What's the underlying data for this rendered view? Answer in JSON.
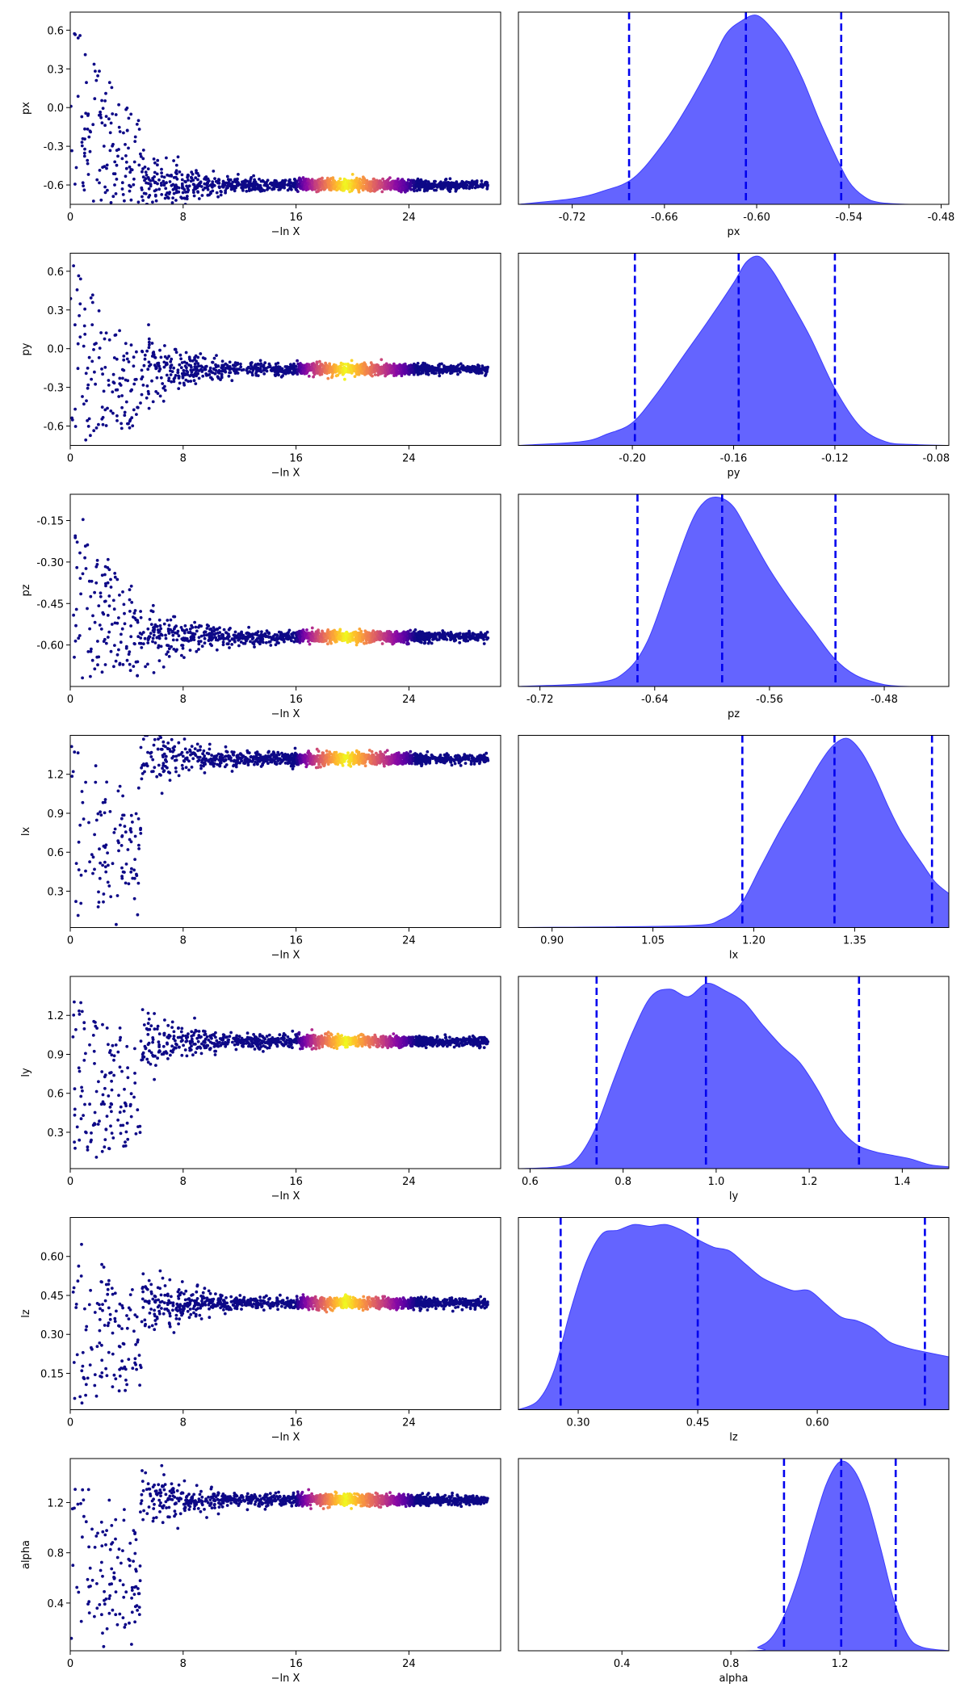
{
  "figure": {
    "title": "",
    "trace_xlabel": "−ln X",
    "trace_xticks": [
      0,
      8,
      16,
      24
    ],
    "trace_xlim": [
      0,
      30.5
    ],
    "colormap": "plasma",
    "colors": {
      "posterior_fill": "#6464ff",
      "posterior_edge": "#3c3cff",
      "quantile_line": "#0000ee",
      "axis": "#000000",
      "background": "#ffffff"
    }
  },
  "chart_data": [
    {
      "type": "scatter",
      "name": "px",
      "ylabel": "px",
      "ylim": [
        -0.75,
        0.74
      ],
      "yticks": [
        "0.6",
        "0.3",
        "0.0",
        "-0.3",
        "-0.6"
      ],
      "ytick_values": [
        0.6,
        0.3,
        0.0,
        -0.3,
        -0.6
      ],
      "xlabel": "−ln X",
      "xticks": [
        "0",
        "8",
        "16",
        "24"
      ],
      "converges_to": -0.6,
      "initial_spread": [
        -0.75,
        0.74
      ],
      "band": [
        16,
        24
      ]
    },
    {
      "type": "area",
      "name": "px",
      "xlabel": "px",
      "xlim": [
        -0.755,
        -0.475
      ],
      "xticks": [
        "-0.72",
        "-0.66",
        "-0.60",
        "-0.54",
        "-0.48"
      ],
      "xtick_values": [
        -0.72,
        -0.66,
        -0.6,
        -0.54,
        -0.48
      ],
      "quantiles": [
        -0.683,
        -0.607,
        -0.545
      ],
      "x": [
        -0.755,
        -0.72,
        -0.7,
        -0.68,
        -0.66,
        -0.645,
        -0.63,
        -0.62,
        -0.61,
        -0.6,
        -0.59,
        -0.58,
        -0.57,
        -0.56,
        -0.55,
        -0.54,
        -0.53,
        -0.52,
        -0.5,
        -0.475
      ],
      "y": [
        0.0,
        0.03,
        0.07,
        0.14,
        0.33,
        0.52,
        0.74,
        0.9,
        0.97,
        1.0,
        0.93,
        0.82,
        0.66,
        0.46,
        0.28,
        0.12,
        0.04,
        0.01,
        0.0,
        0.0
      ]
    },
    {
      "type": "scatter",
      "name": "py",
      "ylabel": "py",
      "ylim": [
        -0.75,
        0.74
      ],
      "yticks": [
        "0.6",
        "0.3",
        "0.0",
        "-0.3",
        "-0.6"
      ],
      "ytick_values": [
        0.6,
        0.3,
        0.0,
        -0.3,
        -0.6
      ],
      "xlabel": "−ln X",
      "xticks": [
        "0",
        "8",
        "16",
        "24"
      ],
      "converges_to": -0.16,
      "initial_spread": [
        -0.75,
        0.74
      ],
      "band": [
        16,
        24
      ]
    },
    {
      "type": "area",
      "name": "py",
      "xlabel": "py",
      "xlim": [
        -0.245,
        -0.075
      ],
      "xticks": [
        "-0.20",
        "-0.16",
        "-0.12",
        "-0.08"
      ],
      "xtick_values": [
        -0.2,
        -0.16,
        -0.12,
        -0.08
      ],
      "quantiles": [
        -0.199,
        -0.158,
        -0.12
      ],
      "x": [
        -0.245,
        -0.22,
        -0.21,
        -0.2,
        -0.19,
        -0.18,
        -0.17,
        -0.16,
        -0.155,
        -0.15,
        -0.145,
        -0.14,
        -0.13,
        -0.12,
        -0.11,
        -0.1,
        -0.09,
        -0.075
      ],
      "y": [
        0.0,
        0.02,
        0.06,
        0.12,
        0.28,
        0.47,
        0.66,
        0.86,
        0.97,
        1.0,
        0.93,
        0.82,
        0.58,
        0.3,
        0.1,
        0.02,
        0.005,
        0.0
      ]
    },
    {
      "type": "scatter",
      "name": "pz",
      "ylabel": "pz",
      "ylim": [
        -0.75,
        -0.055
      ],
      "yticks": [
        "-0.15",
        "-0.30",
        "-0.45",
        "-0.60"
      ],
      "ytick_values": [
        -0.15,
        -0.3,
        -0.45,
        -0.6
      ],
      "xlabel": "−ln X",
      "xticks": [
        "0",
        "8",
        "16",
        "24"
      ],
      "converges_to": -0.57,
      "initial_spread": [
        -0.75,
        -0.055
      ],
      "band": [
        16,
        24
      ]
    },
    {
      "type": "area",
      "name": "pz",
      "xlabel": "pz",
      "xlim": [
        -0.735,
        -0.435
      ],
      "xticks": [
        "-0.72",
        "-0.64",
        "-0.56",
        "-0.48"
      ],
      "xtick_values": [
        -0.72,
        -0.64,
        -0.56,
        -0.48
      ],
      "quantiles": [
        -0.652,
        -0.593,
        -0.514
      ],
      "x": [
        -0.735,
        -0.68,
        -0.66,
        -0.645,
        -0.63,
        -0.615,
        -0.605,
        -0.595,
        -0.585,
        -0.575,
        -0.56,
        -0.545,
        -0.53,
        -0.515,
        -0.5,
        -0.48,
        -0.46,
        -0.435
      ],
      "y": [
        0.0,
        0.02,
        0.08,
        0.24,
        0.55,
        0.86,
        0.98,
        1.0,
        0.95,
        0.82,
        0.62,
        0.45,
        0.3,
        0.15,
        0.06,
        0.01,
        0.0,
        0.0
      ]
    },
    {
      "type": "scatter",
      "name": "lx",
      "ylabel": "lx",
      "ylim": [
        0.02,
        1.5
      ],
      "yticks": [
        "1.2",
        "0.9",
        "0.6",
        "0.3"
      ],
      "ytick_values": [
        1.2,
        0.9,
        0.6,
        0.3
      ],
      "xlabel": "−ln X",
      "xticks": [
        "0",
        "8",
        "16",
        "24"
      ],
      "converges_to": 1.32,
      "initial_spread": [
        0.02,
        1.5
      ],
      "band": [
        16,
        24
      ]
    },
    {
      "type": "area",
      "name": "lx",
      "xlabel": "lx",
      "xlim": [
        0.85,
        1.49
      ],
      "xticks": [
        "0.90",
        "1.05",
        "1.20",
        "1.35"
      ],
      "xtick_values": [
        0.9,
        1.05,
        1.2,
        1.35
      ],
      "quantiles": [
        1.183,
        1.32,
        1.465
      ],
      "x": [
        0.85,
        1.1,
        1.15,
        1.18,
        1.21,
        1.24,
        1.27,
        1.3,
        1.32,
        1.34,
        1.36,
        1.38,
        1.4,
        1.42,
        1.45,
        1.47,
        1.49
      ],
      "y": [
        0.0,
        0.01,
        0.04,
        0.12,
        0.32,
        0.52,
        0.7,
        0.88,
        0.97,
        1.0,
        0.93,
        0.8,
        0.64,
        0.5,
        0.34,
        0.24,
        0.18
      ]
    },
    {
      "type": "scatter",
      "name": "ly",
      "ylabel": "ly",
      "ylim": [
        0.02,
        1.5
      ],
      "yticks": [
        "1.2",
        "0.9",
        "0.6",
        "0.3"
      ],
      "ytick_values": [
        1.2,
        0.9,
        0.6,
        0.3
      ],
      "xlabel": "−ln X",
      "xticks": [
        "0",
        "8",
        "16",
        "24"
      ],
      "converges_to": 1.0,
      "initial_spread": [
        0.02,
        1.5
      ],
      "band": [
        16,
        24
      ]
    },
    {
      "type": "area",
      "name": "ly",
      "xlabel": "ly",
      "xlim": [
        0.575,
        1.5
      ],
      "xticks": [
        "0.6",
        "0.8",
        "1.0",
        "1.2",
        "1.4"
      ],
      "xtick_values": [
        0.6,
        0.8,
        1.0,
        1.2,
        1.4
      ],
      "quantiles": [
        0.743,
        0.978,
        1.307
      ],
      "x": [
        0.575,
        0.66,
        0.7,
        0.74,
        0.78,
        0.82,
        0.86,
        0.9,
        0.94,
        0.98,
        1.02,
        1.06,
        1.1,
        1.14,
        1.18,
        1.22,
        1.26,
        1.3,
        1.34,
        1.38,
        1.42,
        1.46,
        1.5
      ],
      "y": [
        0.0,
        0.01,
        0.05,
        0.21,
        0.47,
        0.72,
        0.91,
        0.95,
        0.91,
        0.98,
        0.94,
        0.88,
        0.76,
        0.65,
        0.56,
        0.41,
        0.23,
        0.13,
        0.09,
        0.07,
        0.05,
        0.02,
        0.01
      ]
    },
    {
      "type": "scatter",
      "name": "lz",
      "ylabel": "lz",
      "ylim": [
        0.01,
        0.75
      ],
      "yticks": [
        "0.60",
        "0.45",
        "0.30",
        "0.15"
      ],
      "ytick_values": [
        0.6,
        0.45,
        0.3,
        0.15
      ],
      "xlabel": "−ln X",
      "xticks": [
        "0",
        "8",
        "16",
        "24"
      ],
      "converges_to": 0.42,
      "initial_spread": [
        0.01,
        0.75
      ],
      "band": [
        16,
        24
      ]
    },
    {
      "type": "area",
      "name": "lz",
      "xlabel": "lz",
      "xlim": [
        0.225,
        0.765
      ],
      "xticks": [
        "0.30",
        "0.45",
        "0.60"
      ],
      "xtick_values": [
        0.3,
        0.45,
        0.6
      ],
      "quantiles": [
        0.278,
        0.45,
        0.735
      ],
      "x": [
        0.225,
        0.25,
        0.27,
        0.29,
        0.31,
        0.33,
        0.35,
        0.37,
        0.39,
        0.41,
        0.43,
        0.45,
        0.47,
        0.49,
        0.51,
        0.53,
        0.55,
        0.57,
        0.59,
        0.61,
        0.63,
        0.65,
        0.67,
        0.69,
        0.71,
        0.73,
        0.765
      ],
      "y": [
        0.0,
        0.05,
        0.21,
        0.52,
        0.78,
        0.93,
        0.95,
        0.98,
        0.97,
        0.98,
        0.95,
        0.9,
        0.86,
        0.84,
        0.77,
        0.7,
        0.66,
        0.63,
        0.63,
        0.56,
        0.49,
        0.47,
        0.43,
        0.36,
        0.33,
        0.31,
        0.28
      ]
    },
    {
      "type": "scatter",
      "name": "alpha",
      "ylabel": "alpha",
      "ylim": [
        0.02,
        1.55
      ],
      "yticks": [
        "1.2",
        "0.8",
        "0.4"
      ],
      "ytick_values": [
        1.2,
        0.8,
        0.4
      ],
      "xlabel": "−ln X",
      "xticks": [
        "0",
        "8",
        "16",
        "24"
      ],
      "converges_to": 1.22,
      "initial_spread": [
        0.02,
        1.55
      ],
      "band": [
        16,
        24
      ]
    },
    {
      "type": "area",
      "name": "alpha",
      "xlabel": "alpha",
      "xlim": [
        0.02,
        1.6
      ],
      "xticks": [
        "0.4",
        "0.8",
        "1.2"
      ],
      "xtick_values": [
        0.4,
        0.8,
        1.2
      ],
      "quantiles": [
        0.995,
        1.205,
        1.405
      ],
      "x": [
        0.02,
        0.85,
        0.9,
        0.95,
        1.0,
        1.05,
        1.1,
        1.15,
        1.2,
        1.25,
        1.3,
        1.35,
        1.4,
        1.45,
        1.5,
        1.6
      ],
      "y": [
        0.0,
        0.0,
        0.02,
        0.07,
        0.2,
        0.4,
        0.65,
        0.88,
        1.0,
        0.96,
        0.8,
        0.54,
        0.26,
        0.08,
        0.02,
        0.0
      ]
    }
  ]
}
